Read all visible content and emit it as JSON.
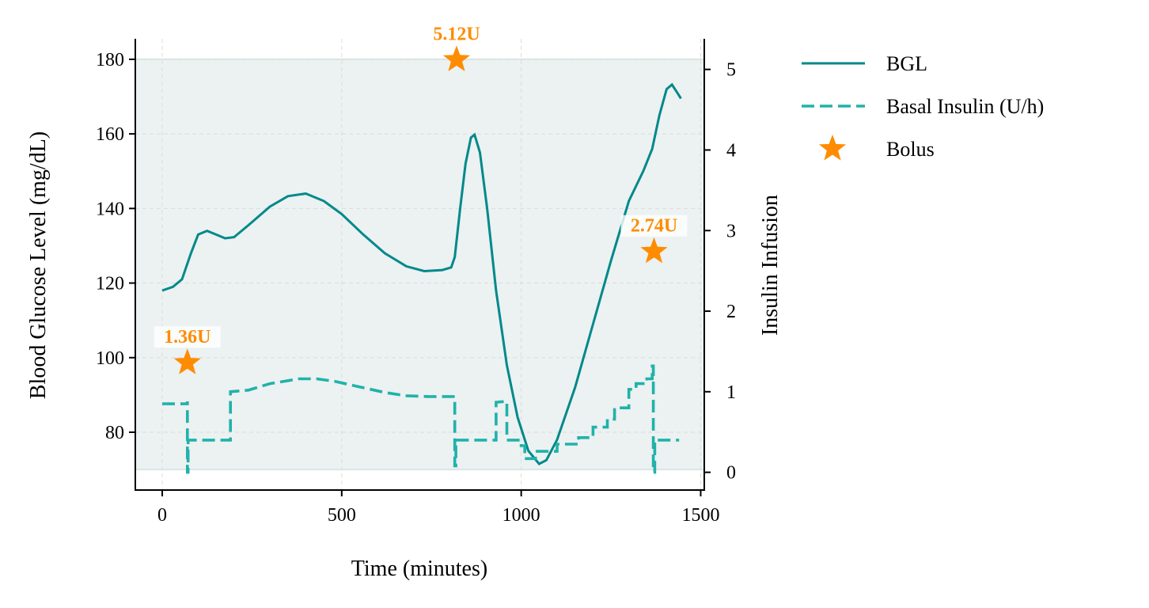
{
  "chart_data": {
    "type": "line",
    "xlabel": "Time (minutes)",
    "ylabel": "Blood Glucose Level (mg/dL)",
    "y2label": "Insulin Infusion",
    "xlim": [
      -75,
      1510
    ],
    "ylim": [
      64.5,
      185.5
    ],
    "y2lim": [
      -0.22,
      5.38
    ],
    "xticks": [
      0,
      500,
      1000,
      1500
    ],
    "yticks": [
      80,
      100,
      120,
      140,
      160,
      180
    ],
    "y2ticks": [
      0,
      1,
      2,
      3,
      4,
      5
    ],
    "target_range": [
      70,
      180
    ],
    "grid": true,
    "legend_position": "outside right, top",
    "colors": {
      "bgl": "#00898a",
      "basal": "#20b2aa",
      "bolus": "#ff8c00",
      "target_band": "#ecf1f1"
    },
    "series": [
      {
        "name": "BGL",
        "axis": "left",
        "style": "solid",
        "points": [
          [
            0,
            118
          ],
          [
            30,
            119
          ],
          [
            55,
            121
          ],
          [
            80,
            128
          ],
          [
            100,
            133
          ],
          [
            125,
            134
          ],
          [
            150,
            133
          ],
          [
            175,
            132
          ],
          [
            200,
            132.3
          ],
          [
            240,
            135.5
          ],
          [
            300,
            140.5
          ],
          [
            350,
            143.3
          ],
          [
            400,
            144
          ],
          [
            450,
            142
          ],
          [
            500,
            138.5
          ],
          [
            560,
            133
          ],
          [
            620,
            128
          ],
          [
            680,
            124.5
          ],
          [
            730,
            123.2
          ],
          [
            780,
            123.5
          ],
          [
            805,
            124.2
          ],
          [
            815,
            127
          ],
          [
            830,
            140
          ],
          [
            845,
            152
          ],
          [
            860,
            159
          ],
          [
            870,
            159.8
          ],
          [
            885,
            155
          ],
          [
            905,
            140
          ],
          [
            930,
            118
          ],
          [
            960,
            98
          ],
          [
            990,
            84
          ],
          [
            1020,
            75
          ],
          [
            1050,
            71.5
          ],
          [
            1070,
            72.5
          ],
          [
            1100,
            78
          ],
          [
            1150,
            92
          ],
          [
            1200,
            109
          ],
          [
            1250,
            126
          ],
          [
            1300,
            142
          ],
          [
            1340,
            150
          ],
          [
            1365,
            156
          ],
          [
            1385,
            165
          ],
          [
            1405,
            172
          ],
          [
            1420,
            173.2
          ],
          [
            1435,
            171
          ],
          [
            1445,
            169.5
          ]
        ]
      },
      {
        "name": "Basal Insulin (U/h)",
        "axis": "right",
        "style": "dashed",
        "points": [
          [
            0,
            0.85
          ],
          [
            70,
            0.85
          ],
          [
            70,
            0.88
          ],
          [
            70,
            0
          ],
          [
            72,
            0
          ],
          [
            72,
            0.4
          ],
          [
            190,
            0.4
          ],
          [
            190,
            1.0
          ],
          [
            240,
            1.02
          ],
          [
            270,
            1.06
          ],
          [
            300,
            1.1
          ],
          [
            340,
            1.13
          ],
          [
            380,
            1.16
          ],
          [
            430,
            1.16
          ],
          [
            480,
            1.13
          ],
          [
            520,
            1.09
          ],
          [
            560,
            1.05
          ],
          [
            620,
            0.99
          ],
          [
            680,
            0.95
          ],
          [
            740,
            0.94
          ],
          [
            815,
            0.94
          ],
          [
            815,
            0.08
          ],
          [
            818,
            0.08
          ],
          [
            818,
            0.4
          ],
          [
            930,
            0.4
          ],
          [
            930,
            0.87
          ],
          [
            960,
            0.88
          ],
          [
            960,
            0.4
          ],
          [
            1000,
            0.4
          ],
          [
            1000,
            0.33
          ],
          [
            1010,
            0.33
          ],
          [
            1010,
            0.17
          ],
          [
            1040,
            0.17
          ],
          [
            1040,
            0.26
          ],
          [
            1100,
            0.26
          ],
          [
            1100,
            0.35
          ],
          [
            1160,
            0.35
          ],
          [
            1160,
            0.43
          ],
          [
            1200,
            0.43
          ],
          [
            1200,
            0.56
          ],
          [
            1240,
            0.56
          ],
          [
            1240,
            0.66
          ],
          [
            1260,
            0.66
          ],
          [
            1260,
            0.8
          ],
          [
            1300,
            0.8
          ],
          [
            1300,
            1.03
          ],
          [
            1320,
            1.03
          ],
          [
            1320,
            1.1
          ],
          [
            1350,
            1.1
          ],
          [
            1350,
            1.16
          ],
          [
            1365,
            1.16
          ],
          [
            1365,
            1.32
          ],
          [
            1368,
            1.32
          ],
          [
            1368,
            0
          ],
          [
            1372,
            0
          ],
          [
            1372,
            0.4
          ],
          [
            1440,
            0.4
          ]
        ]
      },
      {
        "name": "Bolus",
        "axis": "right",
        "style": "marker-star",
        "points": [
          [
            70,
            1.36
          ],
          [
            820,
            5.12
          ],
          [
            1370,
            2.74
          ]
        ],
        "labels": [
          "1.36U",
          "5.12U",
          "2.74U"
        ]
      }
    ]
  }
}
